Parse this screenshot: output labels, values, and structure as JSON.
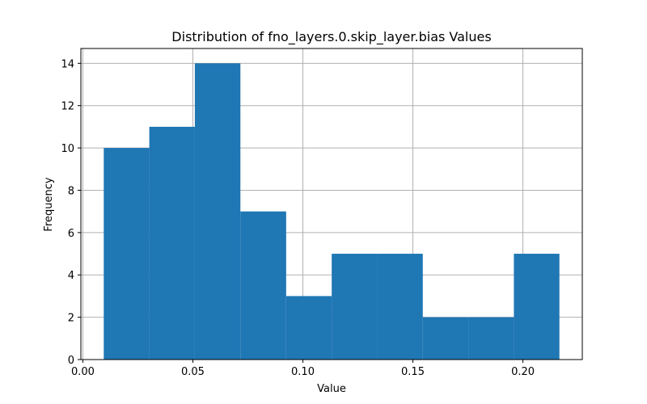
{
  "chart_data": {
    "type": "bar",
    "title": "Distribution of fno_layers.0.skip_layer.bias Values",
    "xlabel": "Value",
    "ylabel": "Frequency",
    "bin_edges": [
      0.0095,
      0.0302,
      0.0509,
      0.0716,
      0.0924,
      0.1131,
      0.1338,
      0.1545,
      0.1752,
      0.1959,
      0.2166
    ],
    "values": [
      10,
      11,
      14,
      7,
      3,
      5,
      5,
      2,
      2,
      5
    ],
    "xlim": [
      -0.0009,
      0.227
    ],
    "ylim": [
      0,
      14.7
    ],
    "xticks": [
      0.0,
      0.05,
      0.1,
      0.15,
      0.2
    ],
    "xtick_labels": [
      "0.00",
      "0.05",
      "0.10",
      "0.15",
      "0.20"
    ],
    "yticks": [
      0,
      2,
      4,
      6,
      8,
      10,
      12,
      14
    ],
    "ytick_labels": [
      "0",
      "2",
      "4",
      "6",
      "8",
      "10",
      "12",
      "14"
    ],
    "grid": true,
    "bar_color": "#1f77b4",
    "grid_color": "#b0b0b0"
  }
}
